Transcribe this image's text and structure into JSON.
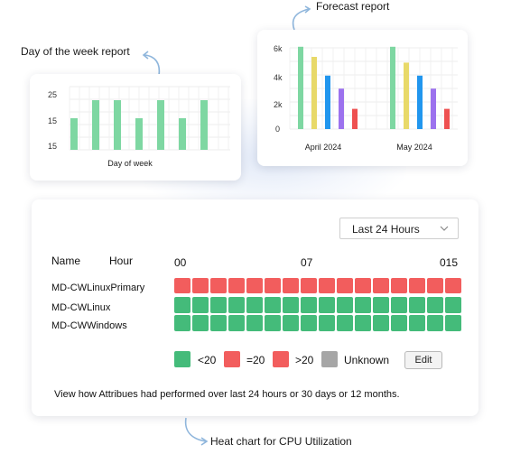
{
  "callouts": {
    "forecast": "Forecast report",
    "day_of_week": "Day of the week report",
    "heat_chart": "Heat chart for CPU Utilization"
  },
  "colors": {
    "green": "#44bb7a",
    "red": "#f25d5d",
    "gray": "#a6a6a6",
    "bar_green": "#7ed7a2",
    "bar_yellow": "#e8d969",
    "bar_blue": "#2196ee",
    "bar_purple": "#9c72ee",
    "bar_red": "#ee5050",
    "arrow": "#8fb6dc"
  },
  "chart_data": [
    {
      "type": "bar",
      "xlabel": "Day of week",
      "y_ticks": [
        "25",
        "15",
        "15"
      ],
      "values": [
        19,
        23,
        23,
        19,
        23,
        19,
        23
      ],
      "grid": true
    },
    {
      "type": "bar",
      "y_ticks": [
        "6k",
        "4k",
        "2k",
        "0"
      ],
      "ylim": [
        0,
        6000
      ],
      "categories": [
        "April 2024",
        "May 2024"
      ],
      "series": [
        {
          "color": "bar_green",
          "values": [
            5700,
            5700
          ]
        },
        {
          "color": "bar_yellow",
          "values": [
            5000,
            4600
          ]
        },
        {
          "color": "bar_blue",
          "values": [
            3700,
            3700
          ]
        },
        {
          "color": "bar_purple",
          "values": [
            2800,
            2800
          ]
        },
        {
          "color": "bar_red",
          "values": [
            1400,
            1400
          ]
        }
      ],
      "grid": true
    }
  ],
  "heatmap": {
    "range_selector": "Last 24 Hours",
    "header_name": "Name",
    "header_hour": "Hour",
    "hour_labels": [
      "00",
      "07",
      "015"
    ],
    "rows": [
      {
        "name": "MD-CWLinuxPrimary",
        "status": "red"
      },
      {
        "name": "MD-CWLinux",
        "status": "green"
      },
      {
        "name": "MD-CWWindows",
        "status": "green"
      }
    ],
    "columns": 16,
    "legend": [
      {
        "label": "<20",
        "color": "green"
      },
      {
        "label": "=20",
        "color": "red"
      },
      {
        "label": ">20",
        "color": "red"
      },
      {
        "label": "Unknown",
        "color": "gray"
      }
    ],
    "edit_label": "Edit",
    "description": "View how Attribues had performed over last 24 hours or 30 days or 12 months."
  }
}
